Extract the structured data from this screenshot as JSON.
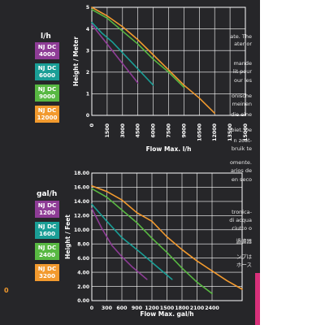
{
  "colors": {
    "panel": "#262629",
    "purple": "#8e3c96",
    "teal": "#1a9e96",
    "green": "#58b842",
    "orange": "#f29a2e",
    "grid": "#ffffff",
    "pink_edge": "#d8307a"
  },
  "side_text_top": [
    "ate. The",
    "ater or",
    "",
    "mande",
    "lit pour",
    "our les",
    "",
    "onische",
    "meinen",
    "die eine",
    "",
    "biet. De",
    "n zoet-",
    "bruik te",
    "",
    "omente.",
    "arios de",
    "en seco"
  ],
  "side_text_bottom": [
    "tronica-",
    "di acqua",
    "ciutto o",
    "過濾器",
    "ンプは",
    "ホース"
  ],
  "legend_top": {
    "unit": "l/h",
    "items": [
      {
        "line1": "NJ DC",
        "line2": "4000",
        "color": "#8e3c96"
      },
      {
        "line1": "NJ DC",
        "line2": "6000",
        "color": "#1a9e96"
      },
      {
        "line1": "NJ DC",
        "line2": "9000",
        "color": "#58b842"
      },
      {
        "line1": "NJ DC",
        "line2": "12000",
        "color": "#f29a2e"
      }
    ]
  },
  "legend_bottom": {
    "unit": "gal/h",
    "items": [
      {
        "line1": "NJ DC",
        "line2": "1200",
        "color": "#8e3c96"
      },
      {
        "line1": "NJ DC",
        "line2": "1600",
        "color": "#1a9e96"
      },
      {
        "line1": "NJ DC",
        "line2": "2400",
        "color": "#58b842"
      },
      {
        "line1": "NJ DC",
        "line2": "3200",
        "color": "#f29a2e"
      }
    ]
  },
  "edge_fragment": "0",
  "chart_data": [
    {
      "type": "line",
      "xlabel": "Flow Max. l/h",
      "ylabel": "Height / Meter",
      "xlim": [
        0,
        15000
      ],
      "ylim": [
        0,
        5
      ],
      "xticks": [
        0,
        1500,
        3000,
        4500,
        6000,
        7500,
        9000,
        10500,
        12000,
        13500,
        15000
      ],
      "yticks": [
        0,
        1,
        2,
        3,
        4,
        5
      ],
      "grid": true,
      "series": [
        {
          "name": "NJ DC 4000",
          "color": "#8e3c96",
          "x": [
            0,
            1000,
            2000,
            3000,
            4000,
            4500
          ],
          "y": [
            4.2,
            3.6,
            3.0,
            2.4,
            1.8,
            1.5
          ]
        },
        {
          "name": "NJ DC 6000",
          "color": "#1a9e96",
          "x": [
            0,
            1000,
            2000,
            3000,
            4000,
            5000,
            6000
          ],
          "y": [
            4.3,
            3.8,
            3.4,
            2.9,
            2.4,
            1.9,
            1.4
          ]
        },
        {
          "name": "NJ DC 9000",
          "color": "#58b842",
          "x": [
            0,
            1500,
            3000,
            4500,
            6000,
            7500,
            9000
          ],
          "y": [
            4.9,
            4.5,
            3.9,
            3.3,
            2.6,
            2.0,
            1.3
          ]
        },
        {
          "name": "NJ DC 12000",
          "color": "#f29a2e",
          "x": [
            0,
            1500,
            3000,
            4500,
            6000,
            7500,
            9000,
            10500,
            12000
          ],
          "y": [
            5.0,
            4.6,
            4.1,
            3.5,
            2.8,
            2.1,
            1.4,
            0.8,
            0.1
          ]
        }
      ]
    },
    {
      "type": "line",
      "xlabel": "Flow Max. gal/h",
      "ylabel": "Height / Feet",
      "xlim": [
        0,
        3000
      ],
      "ylim": [
        0,
        18
      ],
      "xticks": [
        0,
        300,
        600,
        900,
        1200,
        1500,
        1800,
        2100,
        2400
      ],
      "yticks": [
        0,
        2,
        4,
        6,
        8,
        10,
        12,
        14,
        16,
        18
      ],
      "ytick_labels": [
        "0.00",
        "2.00",
        "4.00",
        "6.00",
        "8.00",
        "10.00",
        "12.00",
        "14.00",
        "16.00",
        "18.00"
      ],
      "grid": true,
      "series": [
        {
          "name": "NJ DC 1200",
          "color": "#8e3c96",
          "x": [
            0,
            200,
            400,
            600,
            800,
            1000,
            1100
          ],
          "y": [
            13.0,
            10.2,
            7.8,
            6.2,
            4.8,
            3.6,
            3.0
          ]
        },
        {
          "name": "NJ DC 1600",
          "color": "#1a9e96",
          "x": [
            0,
            300,
            600,
            900,
            1200,
            1400,
            1600
          ],
          "y": [
            13.6,
            11.2,
            8.9,
            7.2,
            5.4,
            4.2,
            3.0
          ]
        },
        {
          "name": "NJ DC 2400",
          "color": "#58b842",
          "x": [
            0,
            300,
            600,
            900,
            1200,
            1500,
            1800,
            2100,
            2400
          ],
          "y": [
            15.8,
            14.6,
            12.8,
            11.0,
            8.8,
            6.8,
            4.6,
            2.6,
            1.0
          ]
        },
        {
          "name": "NJ DC 3200",
          "color": "#f29a2e",
          "x": [
            0,
            300,
            600,
            900,
            1200,
            1500,
            1800,
            2100,
            2400,
            2700,
            3000
          ],
          "y": [
            16.2,
            15.4,
            14.2,
            12.4,
            11.2,
            9.0,
            7.2,
            5.6,
            4.2,
            2.8,
            1.6
          ]
        }
      ]
    }
  ]
}
